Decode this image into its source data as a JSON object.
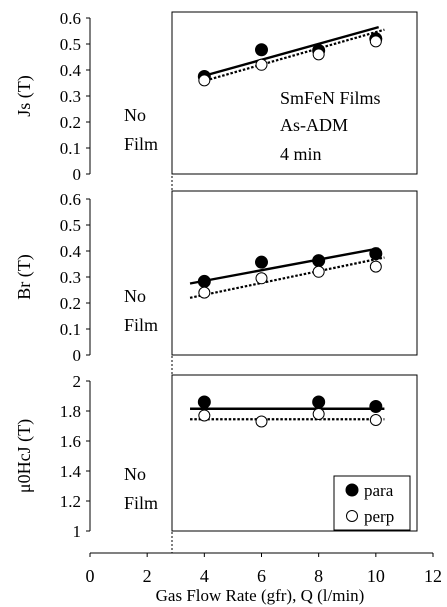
{
  "chart_data": [
    {
      "type": "scatter",
      "ylabel": "Js (T)",
      "ylim": [
        0,
        0.6
      ],
      "yticks": [
        "0",
        "0.1",
        "0.2",
        "0.3",
        "0.4",
        "0.5",
        "0.6"
      ],
      "annotations": [
        "No",
        "Film",
        "SmFeN Films",
        "As-ADM",
        "4 min"
      ],
      "series": [
        {
          "name": "para",
          "x": [
            4,
            6,
            8,
            10
          ],
          "values": [
            0.375,
            0.478,
            0.475,
            0.52
          ],
          "marker": "filled"
        },
        {
          "name": "perp",
          "x": [
            4,
            6,
            8,
            10
          ],
          "values": [
            0.36,
            0.42,
            0.46,
            0.51
          ],
          "marker": "open"
        }
      ],
      "trendlines": [
        {
          "series": "para",
          "style": "solid",
          "x": [
            3.9,
            10.1
          ],
          "values": [
            0.375,
            0.565
          ]
        },
        {
          "series": "perp",
          "style": "dotted",
          "x": [
            3.9,
            10.3
          ],
          "values": [
            0.355,
            0.555
          ]
        }
      ]
    },
    {
      "type": "scatter",
      "ylabel": "Br (T)",
      "ylim": [
        0,
        0.6
      ],
      "yticks": [
        "0",
        "0.1",
        "0.2",
        "0.3",
        "0.4",
        "0.5",
        "0.6"
      ],
      "annotations": [
        "No",
        "Film"
      ],
      "series": [
        {
          "name": "para",
          "x": [
            4,
            6,
            8,
            10
          ],
          "values": [
            0.283,
            0.357,
            0.363,
            0.39
          ],
          "marker": "filled"
        },
        {
          "name": "perp",
          "x": [
            4,
            6,
            8,
            10
          ],
          "values": [
            0.24,
            0.295,
            0.32,
            0.34
          ],
          "marker": "open"
        }
      ],
      "trendlines": [
        {
          "series": "para",
          "style": "solid",
          "x": [
            3.5,
            10.1
          ],
          "values": [
            0.275,
            0.41
          ]
        },
        {
          "series": "perp",
          "style": "dotted",
          "x": [
            3.5,
            10.3
          ],
          "values": [
            0.22,
            0.375
          ]
        }
      ]
    },
    {
      "type": "scatter",
      "ylabel": "μ0HcJ (T)",
      "ylim": [
        1,
        2
      ],
      "yticks": [
        "1",
        "1.2",
        "1.4",
        "1.6",
        "1.8",
        "2"
      ],
      "xlabel": "Gas Flow Rate (gfr), Q (l/min)",
      "xlim": [
        0,
        12
      ],
      "xticks": [
        "0",
        "2",
        "4",
        "6",
        "8",
        "10",
        "12"
      ],
      "annotations": [
        "No",
        "Film"
      ],
      "legend": {
        "position": "bottom-right",
        "entries": [
          "para",
          "perp"
        ]
      },
      "series": [
        {
          "name": "para",
          "x": [
            4,
            8,
            10
          ],
          "values": [
            1.86,
            1.86,
            1.83
          ],
          "marker": "filled"
        },
        {
          "name": "perp",
          "x": [
            4,
            6,
            8,
            10
          ],
          "values": [
            1.77,
            1.73,
            1.78,
            1.74
          ],
          "marker": "open"
        }
      ],
      "trendlines": [
        {
          "series": "para",
          "style": "solid",
          "x": [
            3.5,
            10.3
          ],
          "values": [
            1.815,
            1.815
          ]
        },
        {
          "series": "perp",
          "style": "dotted",
          "x": [
            3.5,
            10.3
          ],
          "values": [
            1.745,
            1.745
          ]
        }
      ],
      "vline": {
        "x": 2.8,
        "style": "dotted"
      }
    }
  ]
}
